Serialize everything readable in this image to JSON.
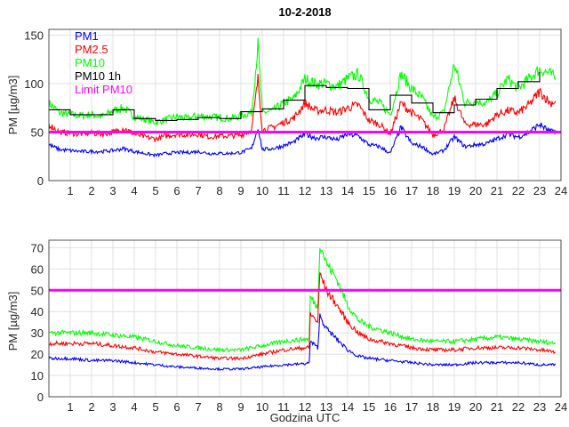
{
  "chart_data": [
    {
      "type": "line",
      "title": "10-2-2018",
      "xlabel": "",
      "ylabel": "PM [µg/m3]",
      "xlim": [
        0,
        24
      ],
      "ylim": [
        0,
        156
      ],
      "xticks": [
        1,
        2,
        3,
        4,
        5,
        6,
        7,
        8,
        9,
        10,
        11,
        12,
        13,
        14,
        15,
        16,
        17,
        18,
        19,
        20,
        21,
        22,
        23,
        24
      ],
      "yticks": [
        0,
        50,
        100,
        150
      ],
      "grid": true,
      "legend_position": "top-left",
      "legend": [
        "PM1",
        "PM2.5",
        "PM10",
        "PM10 1h",
        "Limit PM10"
      ],
      "limit": {
        "name": "Limit PM10",
        "value": 50,
        "color": "#ff00ff"
      },
      "x": [
        0,
        0.5,
        1,
        1.5,
        2,
        2.5,
        3,
        3.5,
        4,
        4.5,
        5,
        5.5,
        6,
        6.5,
        7,
        7.5,
        8,
        8.5,
        9,
        9.5,
        9.8,
        10,
        10.5,
        11,
        11.5,
        12,
        12.5,
        13,
        13.5,
        14,
        14.5,
        15,
        15.5,
        16,
        16.5,
        17,
        17.5,
        18,
        18.5,
        19,
        19.5,
        20,
        20.5,
        21,
        21.5,
        22,
        22.5,
        23,
        23.5,
        23.75
      ],
      "series": [
        {
          "name": "PM10",
          "color": "#00ff00",
          "values": [
            80,
            70,
            68,
            67,
            68,
            66,
            72,
            75,
            66,
            63,
            60,
            63,
            66,
            64,
            67,
            66,
            65,
            64,
            67,
            70,
            140,
            70,
            72,
            80,
            85,
            105,
            100,
            100,
            97,
            105,
            110,
            85,
            80,
            68,
            110,
            95,
            85,
            65,
            70,
            120,
            80,
            82,
            80,
            90,
            105,
            95,
            105,
            115,
            110,
            105
          ]
        },
        {
          "name": "PM2.5",
          "color": "#ff0000",
          "values": [
            58,
            50,
            49,
            48,
            49,
            48,
            50,
            54,
            48,
            45,
            43,
            46,
            48,
            47,
            48,
            45,
            46,
            46,
            47,
            52,
            105,
            52,
            55,
            60,
            65,
            80,
            72,
            73,
            70,
            75,
            78,
            62,
            58,
            48,
            80,
            70,
            62,
            47,
            52,
            85,
            58,
            58,
            58,
            68,
            72,
            70,
            78,
            92,
            80,
            82
          ]
        },
        {
          "name": "PM1",
          "color": "#0000ff",
          "values": [
            37,
            32,
            31,
            30,
            30,
            30,
            31,
            33,
            30,
            28,
            26,
            28,
            29,
            29,
            30,
            28,
            28,
            28,
            29,
            33,
            55,
            32,
            33,
            36,
            40,
            48,
            44,
            45,
            42,
            48,
            46,
            37,
            35,
            28,
            55,
            38,
            35,
            27,
            31,
            45,
            35,
            37,
            38,
            43,
            48,
            45,
            50,
            58,
            50,
            52
          ]
        }
      ],
      "hourly": {
        "name": "PM10 1h",
        "color": "#000000",
        "hours": [
          0,
          1,
          2,
          3,
          4,
          5,
          6,
          7,
          8,
          9,
          10,
          11,
          12,
          13,
          14,
          15,
          16,
          17,
          18,
          19,
          20,
          21,
          22,
          23
        ],
        "values": [
          73,
          68,
          68,
          73,
          64,
          62,
          63,
          65,
          64,
          71,
          74,
          83,
          98,
          96,
          95,
          73,
          88,
          80,
          70,
          78,
          84,
          95,
          102,
          112
        ]
      }
    },
    {
      "type": "line",
      "title": "",
      "xlabel": "Godzina UTC",
      "ylabel": "PM [µg/m3]",
      "xlim": [
        0,
        24
      ],
      "ylim": [
        0,
        73.5
      ],
      "xticks": [
        1,
        2,
        3,
        4,
        5,
        6,
        7,
        8,
        9,
        10,
        11,
        12,
        13,
        14,
        15,
        16,
        17,
        18,
        19,
        20,
        21,
        22,
        23,
        24
      ],
      "yticks": [
        0,
        10,
        20,
        30,
        40,
        50,
        60,
        70
      ],
      "grid": true,
      "limit": {
        "name": "Limit PM10",
        "value": 50,
        "color": "#ff00ff"
      },
      "x": [
        0,
        1,
        2,
        3,
        4,
        5,
        6,
        7,
        8,
        9,
        10,
        11,
        12,
        12.2,
        12.25,
        12.6,
        12.7,
        13,
        13.5,
        14,
        14.5,
        15,
        16,
        17,
        18,
        19,
        20,
        21,
        22,
        23,
        23.75
      ],
      "series": [
        {
          "name": "PM10",
          "color": "#00ff00",
          "values": [
            30,
            30,
            30,
            29,
            28,
            26,
            24,
            23,
            22,
            22,
            24,
            26,
            27,
            27,
            47,
            42,
            72,
            63,
            55,
            43,
            36,
            33,
            30,
            27,
            26,
            26,
            27,
            28,
            27,
            26,
            25
          ]
        },
        {
          "name": "PM2.5",
          "color": "#ff0000",
          "values": [
            25,
            25,
            25,
            24,
            23,
            21,
            20,
            19,
            18,
            18,
            20,
            22,
            23,
            23,
            39,
            35,
            58,
            50,
            43,
            35,
            30,
            27,
            25,
            23,
            22,
            22,
            23,
            23,
            23,
            22,
            21
          ]
        },
        {
          "name": "PM1",
          "color": "#0000ff",
          "values": [
            18,
            18,
            17,
            17,
            16,
            15,
            14,
            13.5,
            13,
            13,
            14,
            15,
            15.5,
            16,
            26,
            23,
            38,
            32,
            27,
            22,
            19,
            18,
            17,
            16,
            15,
            15,
            16,
            16,
            16,
            15,
            15
          ]
        }
      ]
    }
  ]
}
